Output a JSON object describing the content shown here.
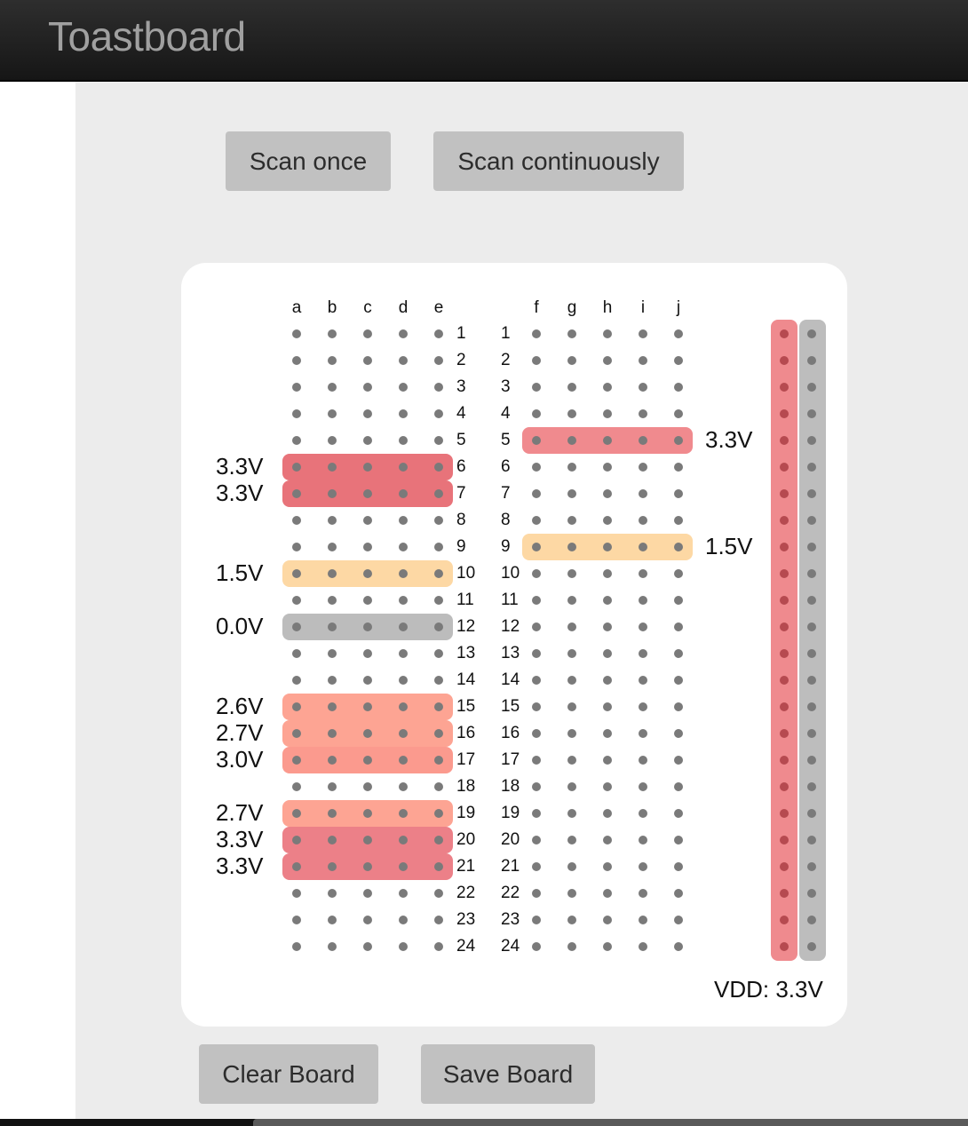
{
  "app": {
    "title": "Toastboard"
  },
  "controls": {
    "scan_once": "Scan once",
    "scan_continuously": "Scan continuously",
    "clear_board": "Clear Board",
    "save_board": "Save Board"
  },
  "board": {
    "left_columns": [
      "a",
      "b",
      "c",
      "d",
      "e"
    ],
    "right_columns": [
      "f",
      "g",
      "h",
      "i",
      "j"
    ],
    "rows": [
      "1",
      "2",
      "3",
      "4",
      "5",
      "6",
      "7",
      "8",
      "9",
      "10",
      "11",
      "12",
      "13",
      "14",
      "15",
      "16",
      "17",
      "18",
      "19",
      "20",
      "21",
      "22",
      "23",
      "24"
    ],
    "vdd_text": "VDD: 3.3V",
    "left_readings": [
      {
        "row": 6,
        "text": "3.3V",
        "color": "#e8737a"
      },
      {
        "row": 7,
        "text": "3.3V",
        "color": "#e8737a"
      },
      {
        "row": 10,
        "text": "1.5V",
        "color": "#fdd8a4"
      },
      {
        "row": 12,
        "text": "0.0V",
        "color": "#bcbcbc"
      },
      {
        "row": 15,
        "text": "2.6V",
        "color": "#fda493"
      },
      {
        "row": 16,
        "text": "2.7V",
        "color": "#fda493"
      },
      {
        "row": 17,
        "text": "3.0V",
        "color": "#fb9a8e"
      },
      {
        "row": 19,
        "text": "2.7V",
        "color": "#fda493"
      },
      {
        "row": 20,
        "text": "3.3V",
        "color": "#ec8088"
      },
      {
        "row": 21,
        "text": "3.3V",
        "color": "#ec8088"
      }
    ],
    "right_readings": [
      {
        "row": 5,
        "text": "3.3V",
        "color": "#f08a8e"
      },
      {
        "row": 9,
        "text": "1.5V",
        "color": "#fdd8a4"
      }
    ],
    "rails": {
      "vdd_color": "#ef8a8e",
      "gnd_color": "#bdbdbd"
    }
  }
}
